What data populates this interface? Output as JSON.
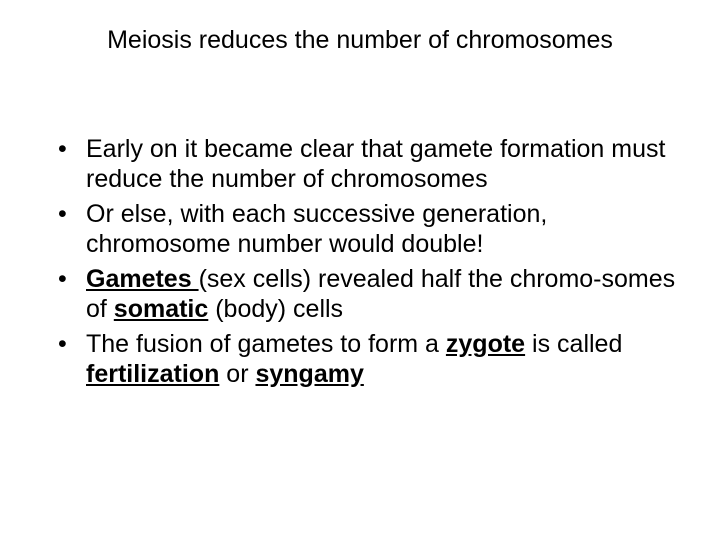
{
  "title_fontsize": 25,
  "body_fontsize": 25,
  "text_color": "#000000",
  "background_color": "#ffffff",
  "font_family": "Arial",
  "title": "Meiosis reduces the number of chromosomes",
  "bullets": {
    "b1": {
      "t1": "Early on it became clear that gamete formation must reduce the number of chromosomes"
    },
    "b2": {
      "t1": "Or else, with each successive generation, chromosome number would double!"
    },
    "b3": {
      "t1": "Gametes ",
      "t2": "(sex cells) revealed half the chromo-somes of ",
      "t3": "somatic",
      "t4": " (body) cells"
    },
    "b4": {
      "t1": "The fusion of gametes to form a ",
      "t2": "zygote",
      "t3": " is called ",
      "t4": "fertilization",
      "t5": " or ",
      "t6": "syngamy"
    }
  }
}
